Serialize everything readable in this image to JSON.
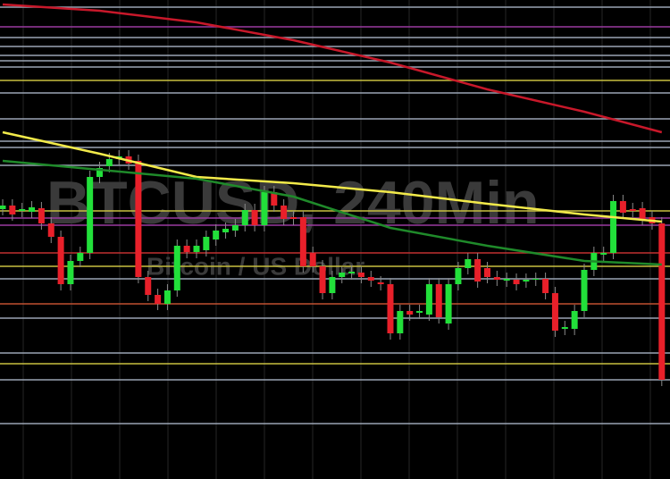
{
  "chart_data": {
    "type": "candlestick",
    "title": "BTCUSD, 240Min",
    "subtitle": "Bitcoin / US Dollar",
    "ylim": [
      0,
      536
    ],
    "up_color": "#22e03a",
    "down_color": "#e8202a",
    "open": [
      302,
      306,
      300,
      299,
      303,
      286,
      271,
      218,
      244,
      253,
      338,
      350,
      358,
      361,
      356,
      226,
      206,
      196,
      211,
      261,
      254,
      256,
      268,
      276,
      278,
      284,
      301,
      284,
      321,
      306,
      293,
      293,
      253,
      238,
      208,
      226,
      230,
      231,
      226,
      220,
      218,
      163,
      188,
      186,
      184,
      218,
      174,
      218,
      236,
      246,
      236,
      226,
      222,
      223,
      221,
      223,
      224,
      208,
      168,
      168,
      188,
      234,
      251,
      253,
      311,
      302,
      303,
      293,
      286
    ],
    "close": [
      306,
      296,
      302,
      304,
      286,
      271,
      218,
      244,
      253,
      338,
      348,
      358,
      361,
      353,
      226,
      206,
      196,
      211,
      261,
      254,
      261,
      271,
      278,
      280,
      284,
      301,
      284,
      321,
      306,
      291,
      291,
      238,
      238,
      208,
      226,
      231,
      232,
      226,
      222,
      218,
      163,
      188,
      184,
      188,
      218,
      181,
      218,
      236,
      246,
      221,
      226,
      223,
      224,
      218,
      223,
      224,
      208,
      166,
      170,
      188,
      234,
      253,
      253,
      311,
      298,
      300,
      291,
      286,
      111
    ],
    "high": [
      313,
      313,
      309,
      311,
      310,
      293,
      278,
      251,
      260,
      345,
      355,
      365,
      368,
      368,
      363,
      233,
      213,
      218,
      268,
      268,
      268,
      278,
      285,
      287,
      291,
      308,
      308,
      328,
      328,
      313,
      300,
      300,
      260,
      245,
      233,
      238,
      239,
      238,
      233,
      227,
      225,
      195,
      195,
      195,
      225,
      225,
      225,
      243,
      253,
      253,
      243,
      233,
      231,
      230,
      230,
      231,
      231,
      215,
      177,
      195,
      241,
      260,
      260,
      318,
      318,
      309,
      310,
      300,
      293
    ],
    "low": [
      295,
      289,
      293,
      292,
      279,
      264,
      211,
      211,
      237,
      246,
      331,
      343,
      351,
      346,
      219,
      199,
      189,
      189,
      204,
      247,
      247,
      249,
      261,
      269,
      271,
      277,
      277,
      277,
      299,
      284,
      284,
      231,
      231,
      201,
      201,
      219,
      223,
      219,
      215,
      211,
      156,
      156,
      177,
      179,
      177,
      174,
      167,
      211,
      229,
      214,
      219,
      216,
      215,
      211,
      214,
      216,
      201,
      159,
      161,
      161,
      181,
      227,
      244,
      246,
      291,
      293,
      284,
      279,
      104
    ],
    "moving_averages": [
      {
        "color": "#f2ea4a",
        "x": [
          0,
          10,
          20,
          30,
          40,
          50,
          60,
          68
        ],
        "values": [
          388,
          364,
          338,
          331,
          321,
          308,
          296,
          288
        ]
      },
      {
        "color": "#1f8a2a",
        "x": [
          0,
          10,
          20,
          30,
          40,
          50,
          60,
          68
        ],
        "values": [
          356,
          346,
          336,
          316,
          281,
          261,
          244,
          240
        ]
      },
      {
        "color": "#c8182a",
        "x": [
          0,
          10,
          20,
          30,
          40,
          50,
          60,
          68
        ],
        "values": [
          531,
          524,
          511,
          491,
          466,
          436,
          411,
          388
        ]
      }
    ],
    "levels": [
      {
        "value": 528,
        "color": "#9aa4b4"
      },
      {
        "value": 506,
        "color": "#9a3aa0"
      },
      {
        "value": 494,
        "color": "#9aa4b4"
      },
      {
        "value": 484,
        "color": "#9aa4b4"
      },
      {
        "value": 474,
        "color": "#9aa4b4"
      },
      {
        "value": 468,
        "color": "#9aa4b4"
      },
      {
        "value": 461,
        "color": "#9aa4b4"
      },
      {
        "value": 446,
        "color": "#c8c040"
      },
      {
        "value": 432,
        "color": "#9aa4b4"
      },
      {
        "value": 403,
        "color": "#9aa4b4"
      },
      {
        "value": 378,
        "color": "#9aa4b4"
      },
      {
        "value": 371,
        "color": "#9aa4b4"
      },
      {
        "value": 351,
        "color": "#9aa4b4"
      },
      {
        "value": 300,
        "color": "#c8c040"
      },
      {
        "value": 292,
        "color": "#9a3aa0"
      },
      {
        "value": 284,
        "color": "#9a3aa0"
      },
      {
        "value": 253,
        "color": "#c03030"
      },
      {
        "value": 238,
        "color": "#c8c040"
      },
      {
        "value": 224,
        "color": "#9aa4b4"
      },
      {
        "value": 196,
        "color": "#c05030"
      },
      {
        "value": 180,
        "color": "#9aa4b4"
      },
      {
        "value": 141,
        "color": "#9aa4b4"
      },
      {
        "value": 129,
        "color": "#c8c040"
      },
      {
        "value": 111,
        "color": "#9aa4b4"
      },
      {
        "value": 62,
        "color": "#9aa4b4"
      }
    ]
  }
}
